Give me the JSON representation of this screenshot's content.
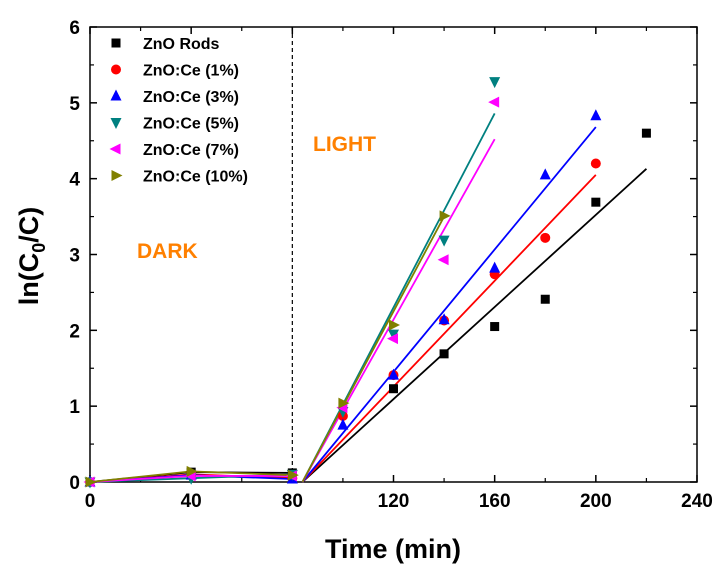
{
  "chart_data": {
    "type": "scatter",
    "xlabel": "Time (min)",
    "ylabel_main": "ln(C",
    "ylabel_sub": "0",
    "ylabel_end": "/C)",
    "xlim": [
      0,
      240
    ],
    "ylim": [
      0,
      6
    ],
    "x_ticks": [
      0,
      40,
      80,
      120,
      160,
      200,
      240
    ],
    "y_ticks": [
      0,
      1,
      2,
      3,
      4,
      5,
      6
    ],
    "grid": false,
    "legend_position": "top-left",
    "annotations": [
      {
        "text": "DARK",
        "color": "#ff8000"
      },
      {
        "text": "LIGHT",
        "color": "#ff8000"
      }
    ],
    "divider_x": 80,
    "series": [
      {
        "name": "ZnO Rods",
        "marker": "square",
        "color": "#000000",
        "points": [
          [
            0,
            0
          ],
          [
            40,
            0.13
          ],
          [
            80,
            0.12
          ],
          [
            120,
            1.23
          ],
          [
            140,
            1.69
          ],
          [
            160,
            2.05
          ],
          [
            180,
            2.41
          ],
          [
            200,
            3.69
          ],
          [
            220,
            4.6
          ]
        ],
        "dark_line": [
          [
            0,
            0
          ],
          [
            40,
            0.13
          ],
          [
            80,
            0.12
          ]
        ],
        "fit_line": [
          [
            84,
            0
          ],
          [
            220,
            4.13
          ]
        ]
      },
      {
        "name": "ZnO:Ce (1%)",
        "marker": "circle",
        "color": "#ff0000",
        "points": [
          [
            0,
            0
          ],
          [
            40,
            0.1
          ],
          [
            80,
            0.05
          ],
          [
            100,
            0.87
          ],
          [
            120,
            1.41
          ],
          [
            140,
            2.13
          ],
          [
            160,
            2.74
          ],
          [
            180,
            3.22
          ],
          [
            200,
            4.2
          ]
        ],
        "dark_line": [
          [
            0,
            0
          ],
          [
            40,
            0.1
          ],
          [
            80,
            0.05
          ]
        ],
        "fit_line": [
          [
            84,
            0
          ],
          [
            200,
            4.05
          ]
        ]
      },
      {
        "name": "ZnO:Ce (3%)",
        "marker": "triangle-up",
        "color": "#0000ff",
        "points": [
          [
            0,
            0
          ],
          [
            40,
            0.09
          ],
          [
            80,
            0.04
          ],
          [
            100,
            0.75
          ],
          [
            120,
            1.41
          ],
          [
            140,
            2.14
          ],
          [
            160,
            2.82
          ],
          [
            180,
            4.05
          ],
          [
            200,
            4.83
          ]
        ],
        "dark_line": [
          [
            0,
            0
          ],
          [
            40,
            0.09
          ],
          [
            80,
            0.04
          ]
        ],
        "fit_line": [
          [
            84,
            0
          ],
          [
            200,
            4.68
          ]
        ]
      },
      {
        "name": "ZnO:Ce (5%)",
        "marker": "triangle-down",
        "color": "#008080",
        "points": [
          [
            0,
            0
          ],
          [
            40,
            0.05
          ],
          [
            80,
            0.1
          ],
          [
            100,
            0.93
          ],
          [
            120,
            1.95
          ],
          [
            140,
            3.19
          ],
          [
            160,
            5.28
          ]
        ],
        "dark_line": [
          [
            0,
            0
          ],
          [
            40,
            0.05
          ],
          [
            80,
            0.1
          ]
        ],
        "fit_line": [
          [
            84,
            0
          ],
          [
            160,
            4.86
          ]
        ]
      },
      {
        "name": "ZnO:Ce (7%)",
        "marker": "triangle-left",
        "color": "#ff00ff",
        "points": [
          [
            0,
            0
          ],
          [
            40,
            0.08
          ],
          [
            80,
            0.08
          ],
          [
            100,
            0.98
          ],
          [
            120,
            1.89
          ],
          [
            140,
            2.93
          ],
          [
            160,
            5.01
          ]
        ],
        "dark_line": [
          [
            0,
            0
          ],
          [
            40,
            0.08
          ],
          [
            80,
            0.08
          ]
        ],
        "fit_line": [
          [
            84,
            0
          ],
          [
            160,
            4.52
          ]
        ]
      },
      {
        "name": "ZnO:Ce (10%)",
        "marker": "triangle-right",
        "color": "#808000",
        "points": [
          [
            0,
            0
          ],
          [
            40,
            0.14
          ],
          [
            80,
            0.09
          ],
          [
            100,
            1.04
          ],
          [
            120,
            2.07
          ],
          [
            140,
            3.51
          ]
        ],
        "dark_line": [
          [
            0,
            0
          ],
          [
            40,
            0.14
          ],
          [
            80,
            0.09
          ]
        ],
        "fit_line": [
          [
            84,
            0
          ],
          [
            140,
            3.5
          ]
        ]
      }
    ]
  }
}
